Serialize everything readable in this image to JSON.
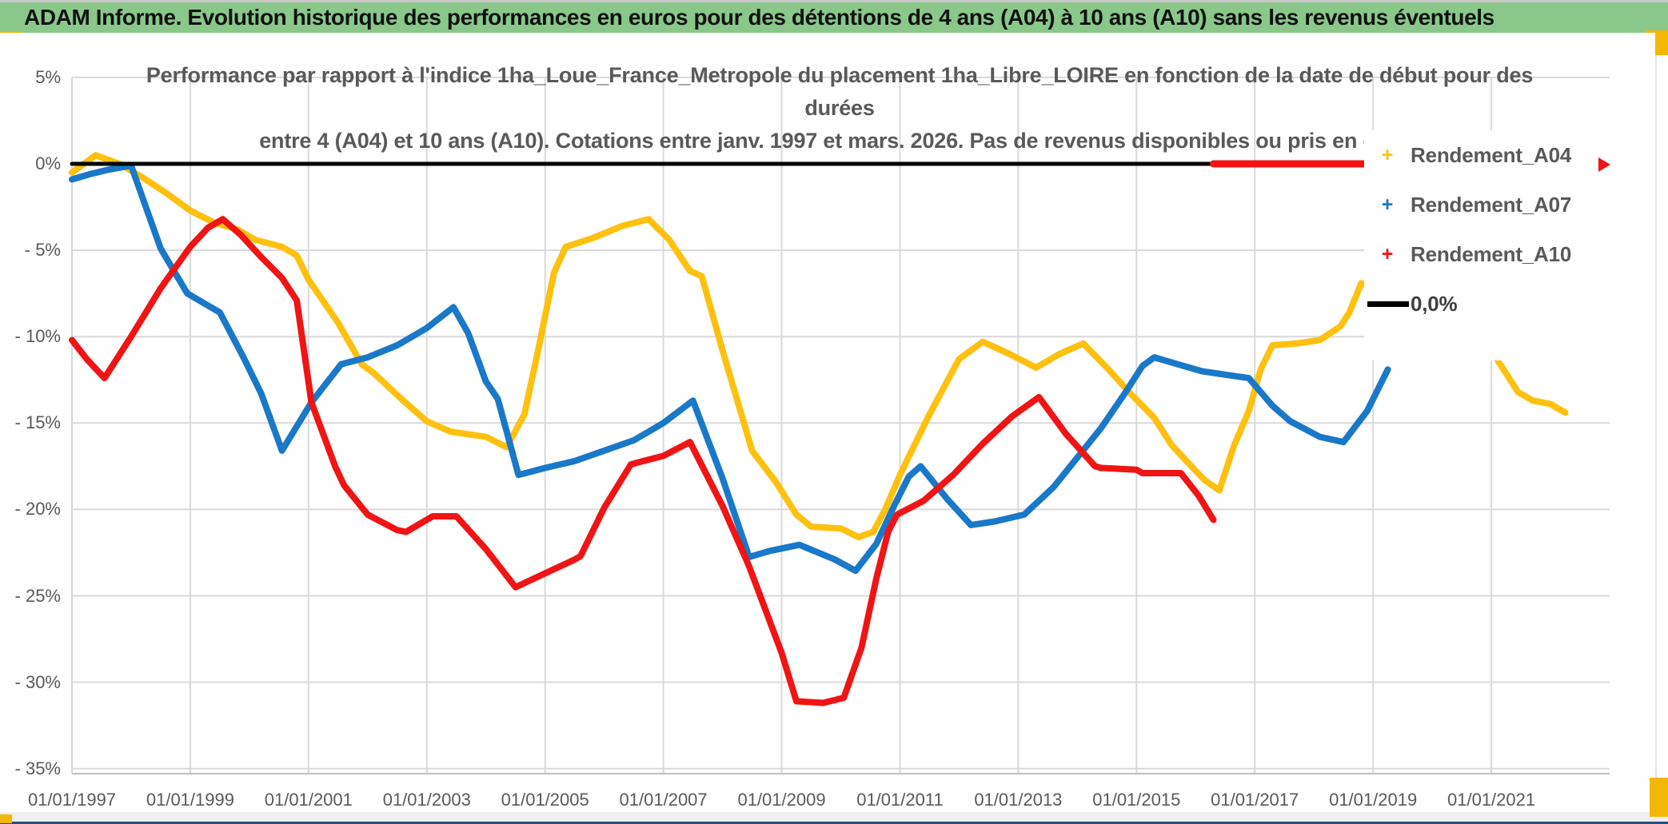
{
  "page": {
    "header": {
      "title": "ADAM Informe. Evolution historique des performances en euros pour des détentions de 4 ans (A04) à 10 ans (A10) sans les revenus éventuels"
    },
    "accent_colors": {
      "green": "#8ac88a",
      "gold": "#f2b705",
      "navy": "#2b4d7e"
    }
  },
  "chart_data": {
    "type": "line",
    "title_line1": "Performance par rapport à l'indice 1ha_Loue_France_Metropole  du placement 1ha_Libre_LOIRE en fonction de la date de début pour des durées",
    "title_line2": "entre 4 (A04) et 10 ans (A10). Cotations entre janv. 1997 et mars. 2026. Pas de revenus disponibles ou pris en comp",
    "grid": "on",
    "legend_position": "right-inside",
    "x_domain": [
      1997,
      2023
    ],
    "ylim": [
      -35,
      5
    ],
    "y_axis": {
      "ticks": [
        {
          "value": 5,
          "label": "5%"
        },
        {
          "value": 0,
          "label": "0%"
        },
        {
          "value": -5,
          "label": "- 5%"
        },
        {
          "value": -10,
          "label": "- 10%"
        },
        {
          "value": -15,
          "label": "- 15%"
        },
        {
          "value": -20,
          "label": "- 20%"
        },
        {
          "value": -25,
          "label": "- 25%"
        },
        {
          "value": -30,
          "label": "- 30%"
        },
        {
          "value": -35,
          "label": "- 35%"
        }
      ]
    },
    "x_axis": {
      "ticks": [
        {
          "year": 1997,
          "label": "01/01/1997"
        },
        {
          "year": 1999,
          "label": "01/01/1999"
        },
        {
          "year": 2001,
          "label": "01/01/2001"
        },
        {
          "year": 2003,
          "label": "01/01/2003"
        },
        {
          "year": 2005,
          "label": "01/01/2005"
        },
        {
          "year": 2007,
          "label": "01/01/2007"
        },
        {
          "year": 2009,
          "label": "01/01/2009"
        },
        {
          "year": 2011,
          "label": "01/01/2011"
        },
        {
          "year": 2013,
          "label": "01/01/2013"
        },
        {
          "year": 2015,
          "label": "01/01/2015"
        },
        {
          "year": 2017,
          "label": "01/01/2017"
        },
        {
          "year": 2019,
          "label": "01/01/2019"
        },
        {
          "year": 2021,
          "label": "01/01/2021"
        }
      ]
    },
    "series": [
      {
        "id": "rendement_a04",
        "name": "Rendement_A04",
        "color": "#ffc010",
        "width": 8,
        "points": [
          [
            1997.0,
            -0.5
          ],
          [
            1997.4,
            0.5
          ],
          [
            1997.8,
            0.0
          ],
          [
            1998.2,
            -0.8
          ],
          [
            1998.6,
            -1.7
          ],
          [
            1999.0,
            -2.7
          ],
          [
            1999.4,
            -3.4
          ],
          [
            1999.8,
            -3.8
          ],
          [
            2000.1,
            -4.4
          ],
          [
            2000.55,
            -4.8
          ],
          [
            2000.8,
            -5.3
          ],
          [
            2001.0,
            -6.7
          ],
          [
            2001.5,
            -9.2
          ],
          [
            2001.9,
            -11.6
          ],
          [
            2002.1,
            -12.1
          ],
          [
            2002.6,
            -13.7
          ],
          [
            2003.0,
            -14.9
          ],
          [
            2003.4,
            -15.5
          ],
          [
            2004.0,
            -15.8
          ],
          [
            2004.35,
            -16.4
          ],
          [
            2004.65,
            -14.5
          ],
          [
            2004.9,
            -10.5
          ],
          [
            2005.15,
            -6.3
          ],
          [
            2005.35,
            -4.8
          ],
          [
            2005.8,
            -4.3
          ],
          [
            2006.3,
            -3.6
          ],
          [
            2006.75,
            -3.2
          ],
          [
            2007.1,
            -4.4
          ],
          [
            2007.45,
            -6.2
          ],
          [
            2007.65,
            -6.5
          ],
          [
            2008.0,
            -10.8
          ],
          [
            2008.5,
            -16.6
          ],
          [
            2008.9,
            -18.4
          ],
          [
            2009.25,
            -20.3
          ],
          [
            2009.5,
            -21.0
          ],
          [
            2010.0,
            -21.1
          ],
          [
            2010.3,
            -21.6
          ],
          [
            2010.55,
            -21.3
          ],
          [
            2010.75,
            -20.0
          ],
          [
            2011.0,
            -18.0
          ],
          [
            2011.5,
            -14.5
          ],
          [
            2012.0,
            -11.3
          ],
          [
            2012.4,
            -10.3
          ],
          [
            2012.85,
            -11.0
          ],
          [
            2013.3,
            -11.8
          ],
          [
            2013.7,
            -11.0
          ],
          [
            2014.1,
            -10.4
          ],
          [
            2014.5,
            -11.8
          ],
          [
            2014.9,
            -13.3
          ],
          [
            2015.3,
            -14.7
          ],
          [
            2015.6,
            -16.3
          ],
          [
            2015.9,
            -17.4
          ],
          [
            2016.15,
            -18.3
          ],
          [
            2016.4,
            -18.9
          ],
          [
            2016.65,
            -16.3
          ],
          [
            2016.9,
            -14.3
          ],
          [
            2017.1,
            -11.9
          ],
          [
            2017.3,
            -10.5
          ],
          [
            2017.7,
            -10.4
          ],
          [
            2018.1,
            -10.2
          ],
          [
            2018.45,
            -9.4
          ],
          [
            2018.6,
            -8.6
          ],
          [
            2018.8,
            -6.9
          ],
          [
            2019.6,
            -7.9
          ],
          [
            2020.3,
            -8.9
          ],
          [
            2020.75,
            -9.4
          ],
          [
            2021.0,
            -10.8
          ],
          [
            2021.45,
            -13.2
          ],
          [
            2021.7,
            -13.7
          ],
          [
            2022.0,
            -13.9
          ],
          [
            2022.25,
            -14.4
          ]
        ]
      },
      {
        "id": "rendement_a07",
        "name": "Rendement_A07",
        "color": "#1a78c8",
        "width": 8,
        "points": [
          [
            1997.0,
            -0.9
          ],
          [
            1997.3,
            -0.6
          ],
          [
            1997.6,
            -0.35
          ],
          [
            1998.0,
            -0.1
          ],
          [
            1998.5,
            -4.9
          ],
          [
            1998.95,
            -7.5
          ],
          [
            1999.3,
            -8.2
          ],
          [
            1999.5,
            -8.6
          ],
          [
            1999.9,
            -11.2
          ],
          [
            2000.2,
            -13.3
          ],
          [
            2000.55,
            -16.6
          ],
          [
            2001.05,
            -13.8
          ],
          [
            2001.55,
            -11.6
          ],
          [
            2002.0,
            -11.2
          ],
          [
            2002.5,
            -10.5
          ],
          [
            2003.0,
            -9.5
          ],
          [
            2003.45,
            -8.3
          ],
          [
            2003.7,
            -9.8
          ],
          [
            2004.0,
            -12.6
          ],
          [
            2004.2,
            -13.6
          ],
          [
            2004.55,
            -18.0
          ],
          [
            2005.0,
            -17.6
          ],
          [
            2005.5,
            -17.2
          ],
          [
            2006.0,
            -16.6
          ],
          [
            2006.5,
            -16.0
          ],
          [
            2007.0,
            -15.0
          ],
          [
            2007.5,
            -13.7
          ],
          [
            2008.0,
            -18.2
          ],
          [
            2008.45,
            -22.75
          ],
          [
            2008.8,
            -22.4
          ],
          [
            2009.3,
            -22.05
          ],
          [
            2009.9,
            -22.9
          ],
          [
            2010.25,
            -23.55
          ],
          [
            2010.6,
            -22.0
          ],
          [
            2010.9,
            -19.8
          ],
          [
            2011.15,
            -18.1
          ],
          [
            2011.35,
            -17.5
          ],
          [
            2011.8,
            -19.4
          ],
          [
            2012.2,
            -20.9
          ],
          [
            2012.6,
            -20.7
          ],
          [
            2013.1,
            -20.3
          ],
          [
            2013.6,
            -18.7
          ],
          [
            2014.0,
            -17.0
          ],
          [
            2014.4,
            -15.3
          ],
          [
            2014.8,
            -13.3
          ],
          [
            2015.1,
            -11.7
          ],
          [
            2015.3,
            -11.2
          ],
          [
            2015.7,
            -11.6
          ],
          [
            2016.1,
            -12.0
          ],
          [
            2016.5,
            -12.2
          ],
          [
            2016.9,
            -12.4
          ],
          [
            2017.3,
            -14.0
          ],
          [
            2017.6,
            -14.9
          ],
          [
            2018.1,
            -15.8
          ],
          [
            2018.5,
            -16.1
          ],
          [
            2018.9,
            -14.3
          ],
          [
            2019.25,
            -11.9
          ]
        ]
      },
      {
        "id": "rendement_a10",
        "name": "Rendement_A10",
        "color": "#f01414",
        "width": 8,
        "points": [
          [
            1997.0,
            -10.2
          ],
          [
            1997.25,
            -11.3
          ],
          [
            1997.55,
            -12.4
          ],
          [
            1998.0,
            -10.0
          ],
          [
            1998.5,
            -7.2
          ],
          [
            1999.0,
            -4.8
          ],
          [
            1999.3,
            -3.7
          ],
          [
            1999.55,
            -3.2
          ],
          [
            1999.85,
            -4.1
          ],
          [
            2000.2,
            -5.4
          ],
          [
            2000.55,
            -6.6
          ],
          [
            2000.8,
            -7.9
          ],
          [
            2001.05,
            -13.8
          ],
          [
            2001.45,
            -17.5
          ],
          [
            2001.6,
            -18.6
          ],
          [
            2002.0,
            -20.3
          ],
          [
            2002.5,
            -21.2
          ],
          [
            2002.65,
            -21.3
          ],
          [
            2003.1,
            -20.4
          ],
          [
            2003.5,
            -20.4
          ],
          [
            2004.0,
            -22.3
          ],
          [
            2004.5,
            -24.5
          ],
          [
            2005.0,
            -23.7
          ],
          [
            2005.5,
            -22.9
          ],
          [
            2005.6,
            -22.7
          ],
          [
            2006.0,
            -19.9
          ],
          [
            2006.45,
            -17.4
          ],
          [
            2006.55,
            -17.3
          ],
          [
            2007.0,
            -16.9
          ],
          [
            2007.45,
            -16.1
          ],
          [
            2008.0,
            -19.8
          ],
          [
            2008.45,
            -23.3
          ],
          [
            2009.0,
            -28.3
          ],
          [
            2009.25,
            -31.1
          ],
          [
            2009.7,
            -31.2
          ],
          [
            2010.05,
            -30.9
          ],
          [
            2010.35,
            -28.0
          ],
          [
            2010.6,
            -24.0
          ],
          [
            2010.8,
            -21.3
          ],
          [
            2010.95,
            -20.3
          ],
          [
            2011.4,
            -19.5
          ],
          [
            2011.9,
            -18.0
          ],
          [
            2012.4,
            -16.2
          ],
          [
            2012.9,
            -14.6
          ],
          [
            2013.35,
            -13.5
          ],
          [
            2013.8,
            -15.6
          ],
          [
            2014.3,
            -17.5
          ],
          [
            2014.4,
            -17.6
          ],
          [
            2015.0,
            -17.7
          ],
          [
            2015.1,
            -17.9
          ],
          [
            2015.75,
            -17.9
          ],
          [
            2016.05,
            -19.2
          ],
          [
            2016.3,
            -20.6
          ]
        ]
      },
      {
        "id": "zero_line_black",
        "name": "0,0%",
        "color": "#000000",
        "width": 5,
        "points": [
          [
            1997.0,
            0
          ],
          [
            2016.3,
            0
          ]
        ]
      },
      {
        "id": "zero_line_red_segment",
        "name": "zero-red-segment",
        "color": "#f01414",
        "width": 9,
        "points": [
          [
            2016.3,
            0
          ],
          [
            2018.9,
            0
          ]
        ]
      }
    ],
    "legend": [
      {
        "label": "Rendement_A04",
        "marker": "plus",
        "color": "#ffc010"
      },
      {
        "label": "Rendement_A07",
        "marker": "plus",
        "color": "#1a78c8"
      },
      {
        "label": "Rendement_A10",
        "marker": "plus",
        "color": "#f01414"
      },
      {
        "label": "0,0%",
        "marker": "line",
        "color": "#000000"
      }
    ]
  }
}
